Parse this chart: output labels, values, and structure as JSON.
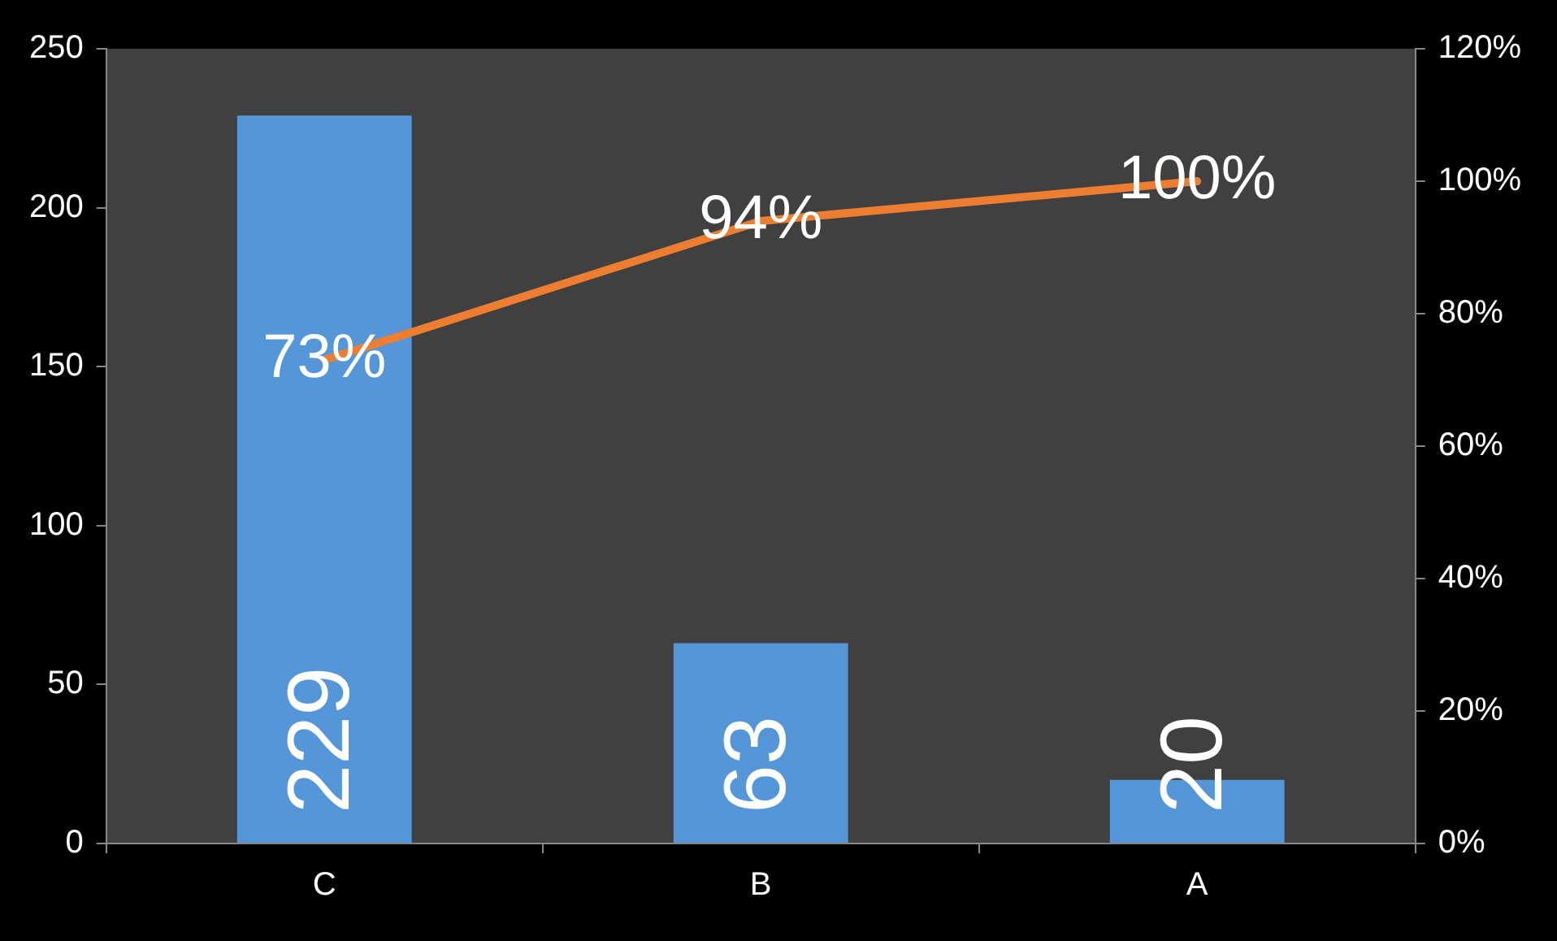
{
  "chart_data": {
    "type": "bar",
    "categories": [
      "C",
      "B",
      "A"
    ],
    "series": [
      {
        "color": "#5596d8",
        "values": [
          229,
          63,
          20
        ],
        "value_labels": [
          "229",
          "63",
          "20"
        ]
      },
      {
        "type": "line",
        "axis": "y2",
        "color": "#ed7d31",
        "values": [
          73,
          94,
          100
        ],
        "value_labels": [
          "73%",
          "94%",
          "100%"
        ]
      }
    ],
    "ylim": [
      0,
      250
    ],
    "yticks": [
      0,
      50,
      100,
      150,
      200,
      250
    ],
    "y2lim": [
      0,
      120
    ],
    "y2ticks": [
      {
        "value": 0,
        "label": "0%"
      },
      {
        "value": 20,
        "label": "20%"
      },
      {
        "value": 40,
        "label": "40%"
      },
      {
        "value": 60,
        "label": "60%"
      },
      {
        "value": 80,
        "label": "80%"
      },
      {
        "value": 100,
        "label": "100%"
      },
      {
        "value": 120,
        "label": "120%"
      }
    ],
    "marker": "none"
  }
}
